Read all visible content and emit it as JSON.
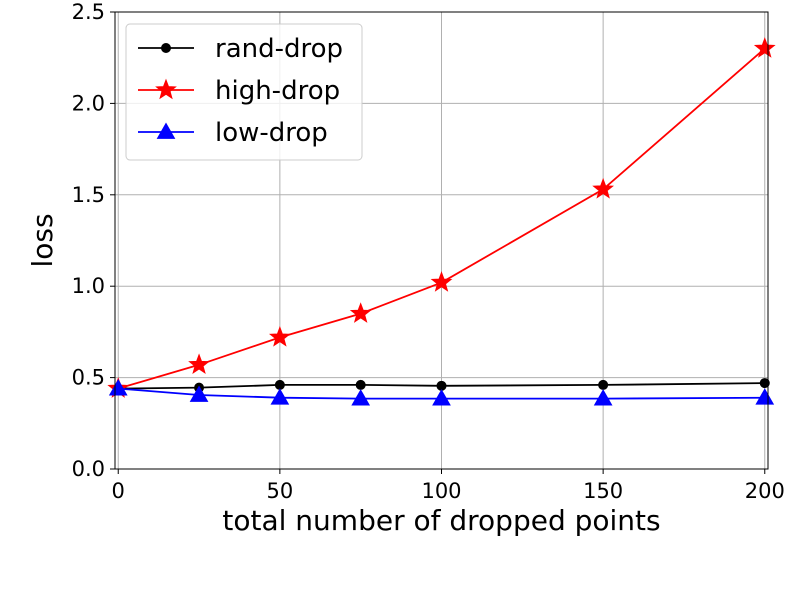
{
  "chart_data": {
    "type": "line",
    "title": "",
    "xlabel": "total number of dropped points",
    "ylabel": "loss",
    "xlim": [
      -1,
      201
    ],
    "ylim": [
      0.0,
      2.5
    ],
    "xticks": [
      "0",
      "50",
      "100",
      "150",
      "200"
    ],
    "yticks": [
      "0.0",
      "0.5",
      "1.0",
      "1.5",
      "2.0",
      "2.5"
    ],
    "grid": true,
    "legend_position": "upper-left",
    "x": [
      0,
      25,
      50,
      75,
      100,
      150,
      200
    ],
    "series": [
      {
        "name": "rand-drop",
        "color": "#000000",
        "marker": "circle",
        "values": [
          0.44,
          0.445,
          0.46,
          0.46,
          0.455,
          0.46,
          0.47
        ]
      },
      {
        "name": "high-drop",
        "color": "#ff0000",
        "marker": "star",
        "values": [
          0.44,
          0.57,
          0.72,
          0.85,
          1.02,
          1.53,
          2.3
        ]
      },
      {
        "name": "low-drop",
        "color": "#0000ff",
        "marker": "triangle",
        "values": [
          0.44,
          0.405,
          0.39,
          0.385,
          0.385,
          0.385,
          0.39
        ]
      }
    ]
  }
}
